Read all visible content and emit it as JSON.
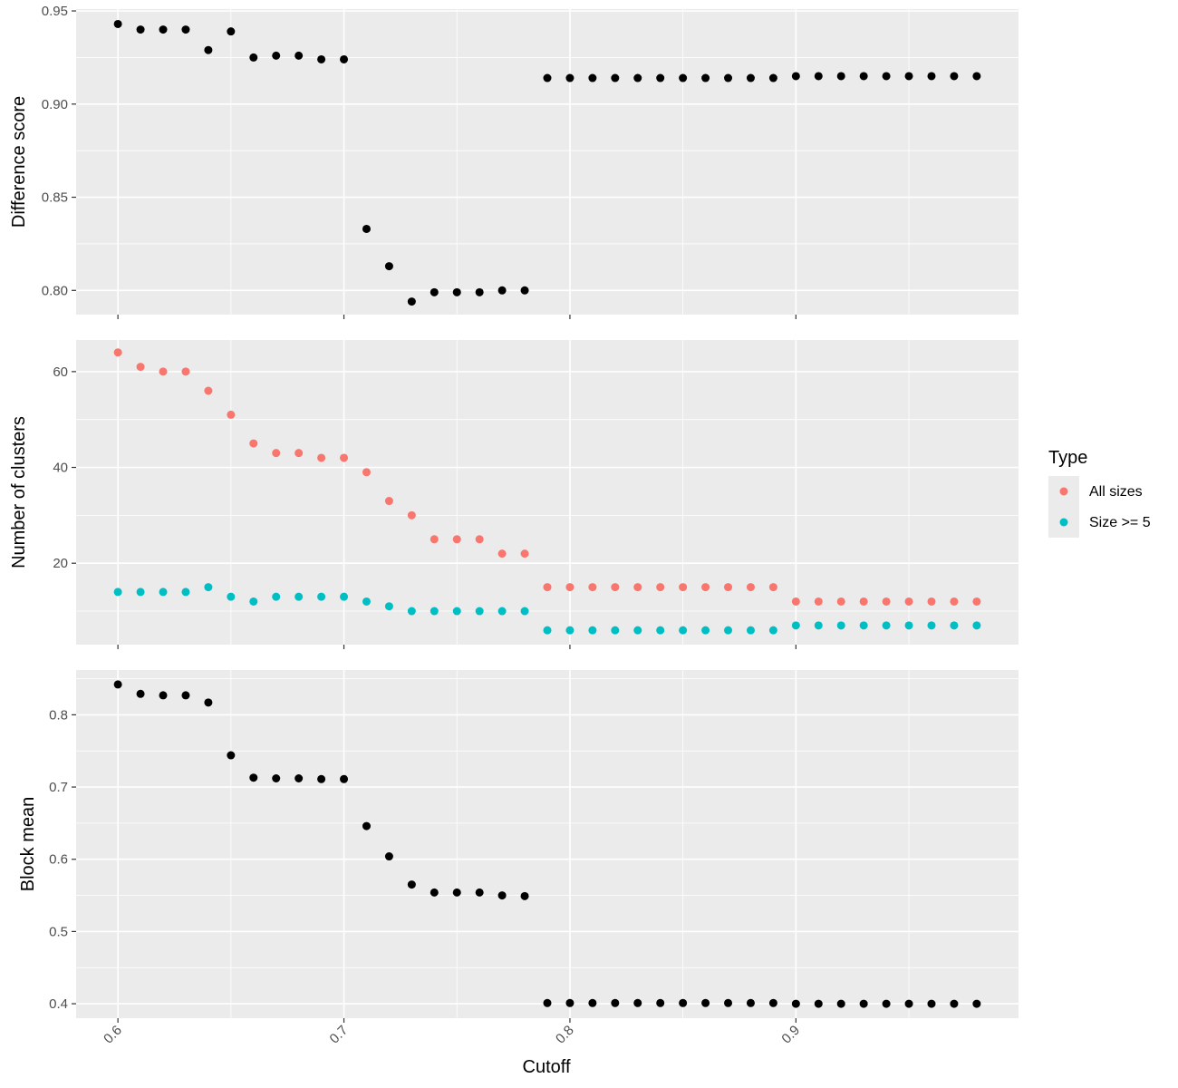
{
  "chart_data": {
    "type": "scatter",
    "xlabel": "Cutoff",
    "x_ticks": [
      0.6,
      0.7,
      0.8,
      0.9
    ],
    "xlim": [
      0.5815,
      0.9985
    ],
    "x": [
      0.6,
      0.61,
      0.62,
      0.63,
      0.64,
      0.65,
      0.66,
      0.67,
      0.68,
      0.69,
      0.7,
      0.71,
      0.72,
      0.73,
      0.74,
      0.75,
      0.76,
      0.77,
      0.78,
      0.79,
      0.8,
      0.81,
      0.82,
      0.83,
      0.84,
      0.85,
      0.86,
      0.87,
      0.88,
      0.89,
      0.9,
      0.91,
      0.92,
      0.93,
      0.94,
      0.95,
      0.96,
      0.97,
      0.98
    ],
    "grid": true,
    "legend": {
      "title": "Type",
      "position": "right",
      "entries": [
        {
          "label": "All sizes",
          "color": "#F8766D"
        },
        {
          "label": "Size >= 5",
          "color": "#00BFC4"
        }
      ]
    },
    "panels": [
      {
        "ylabel": "Difference score",
        "ylim": [
          0.787,
          0.951
        ],
        "y_ticks": [
          0.8,
          0.85,
          0.9,
          0.95
        ],
        "y_tick_labels": [
          "0.80",
          "0.85",
          "0.90",
          "0.95"
        ],
        "series": [
          {
            "color": "#000000",
            "values": [
              0.943,
              0.94,
              0.94,
              0.94,
              0.929,
              0.939,
              0.925,
              0.926,
              0.926,
              0.924,
              0.924,
              0.833,
              0.813,
              0.794,
              0.799,
              0.799,
              0.799,
              0.8,
              0.8,
              0.914,
              0.914,
              0.914,
              0.914,
              0.914,
              0.914,
              0.914,
              0.914,
              0.914,
              0.914,
              0.914,
              0.915,
              0.915,
              0.915,
              0.915,
              0.915,
              0.915,
              0.915,
              0.915,
              0.915
            ]
          }
        ]
      },
      {
        "ylabel": "Number of clusters",
        "ylim": [
          3.0,
          66.6
        ],
        "y_ticks": [
          20,
          40,
          60
        ],
        "y_tick_labels": [
          "20",
          "40",
          "60"
        ],
        "series": [
          {
            "name": "All sizes",
            "color": "#F8766D",
            "values": [
              64,
              61,
              60,
              60,
              56,
              51,
              45,
              43,
              43,
              42,
              42,
              39,
              33,
              30,
              25,
              25,
              25,
              22,
              22,
              15,
              15,
              15,
              15,
              15,
              15,
              15,
              15,
              15,
              15,
              15,
              12,
              12,
              12,
              12,
              12,
              12,
              12,
              12,
              12
            ]
          },
          {
            "name": "Size >= 5",
            "color": "#00BFC4",
            "values": [
              14,
              14,
              14,
              14,
              15,
              13,
              12,
              13,
              13,
              13,
              13,
              12,
              11,
              10,
              10,
              10,
              10,
              10,
              10,
              6,
              6,
              6,
              6,
              6,
              6,
              6,
              6,
              6,
              6,
              6,
              7,
              7,
              7,
              7,
              7,
              7,
              7,
              7,
              7
            ]
          }
        ]
      },
      {
        "ylabel": "Block mean",
        "ylim": [
          0.38,
          0.862
        ],
        "y_ticks": [
          0.4,
          0.5,
          0.6,
          0.7,
          0.8
        ],
        "y_tick_labels": [
          "0.4",
          "0.5",
          "0.6",
          "0.7",
          "0.8"
        ],
        "series": [
          {
            "color": "#000000",
            "values": [
              0.842,
              0.829,
              0.827,
              0.827,
              0.817,
              0.744,
              0.713,
              0.712,
              0.712,
              0.711,
              0.711,
              0.646,
              0.604,
              0.565,
              0.554,
              0.554,
              0.554,
              0.55,
              0.549,
              0.401,
              0.401,
              0.401,
              0.401,
              0.401,
              0.401,
              0.401,
              0.401,
              0.401,
              0.401,
              0.401,
              0.4,
              0.4,
              0.4,
              0.4,
              0.4,
              0.4,
              0.4,
              0.4,
              0.4
            ]
          }
        ]
      }
    ]
  }
}
